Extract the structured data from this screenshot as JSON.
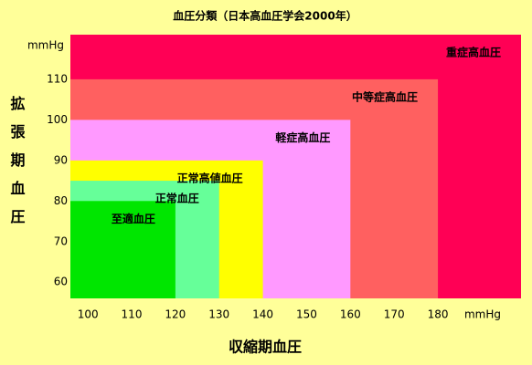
{
  "chart_data": {
    "type": "nested-region",
    "title": "血圧分類（日本高血圧学会2000年）",
    "x_label": "収縮期血圧",
    "y_label": "拡張期血圧",
    "x_unit": "mmHg",
    "y_unit": "mmHg",
    "xlim": [
      96,
      199
    ],
    "ylim": [
      56,
      121
    ],
    "xticks": [
      100,
      110,
      120,
      130,
      140,
      150,
      160,
      170,
      180
    ],
    "yticks": [
      60,
      70,
      80,
      90,
      100,
      110
    ],
    "grid": false,
    "regions": [
      {
        "name": "至適血圧",
        "color": "#00e600",
        "systolic": 120,
        "diastolic": 80
      },
      {
        "name": "正常血圧",
        "color": "#66ff99",
        "systolic": 130,
        "diastolic": 85
      },
      {
        "name": "正常高値血圧",
        "color": "#ffff00",
        "systolic": 140,
        "diastolic": 90
      },
      {
        "name": "軽症高血圧",
        "color": "#ff99ff",
        "systolic": 160,
        "diastolic": 100
      },
      {
        "name": "中等症高血圧",
        "color": "#ff6060",
        "systolic": 180,
        "diastolic": 110
      },
      {
        "name": "重症高血圧",
        "color": "#ff0055"
      }
    ]
  }
}
